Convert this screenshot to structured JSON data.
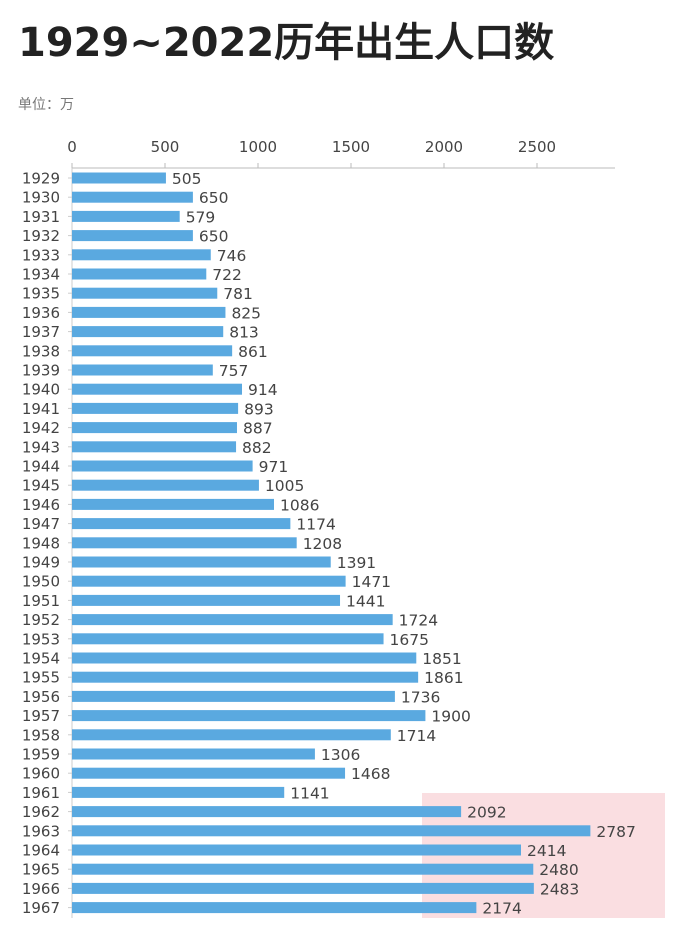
{
  "title": "1929~2022历年出生人口数",
  "unit_label": "单位：万",
  "chart_data": {
    "type": "bar",
    "orientation": "horizontal",
    "title": "1929~2022历年出生人口数",
    "xlabel": "",
    "ylabel": "",
    "unit": "万",
    "xlim": [
      0,
      2920
    ],
    "xticks": [
      0,
      500,
      1000,
      1500,
      2000,
      2500
    ],
    "bar_color": "#5aa9e0",
    "highlight_color": "#f5bec3",
    "highlight_range": [
      "1962",
      "1967"
    ],
    "categories": [
      "1929",
      "1930",
      "1931",
      "1932",
      "1933",
      "1934",
      "1935",
      "1936",
      "1937",
      "1938",
      "1939",
      "1940",
      "1941",
      "1942",
      "1943",
      "1944",
      "1945",
      "1946",
      "1947",
      "1948",
      "1949",
      "1950",
      "1951",
      "1952",
      "1953",
      "1954",
      "1955",
      "1956",
      "1957",
      "1958",
      "1959",
      "1960",
      "1961",
      "1962",
      "1963",
      "1964",
      "1965",
      "1966",
      "1967"
    ],
    "values": [
      505,
      650,
      579,
      650,
      746,
      722,
      781,
      825,
      813,
      861,
      757,
      914,
      893,
      887,
      882,
      971,
      1005,
      1086,
      1174,
      1208,
      1391,
      1471,
      1441,
      1724,
      1675,
      1851,
      1861,
      1736,
      1900,
      1714,
      1306,
      1468,
      1141,
      2092,
      2787,
      2414,
      2480,
      2483,
      2174
    ]
  }
}
